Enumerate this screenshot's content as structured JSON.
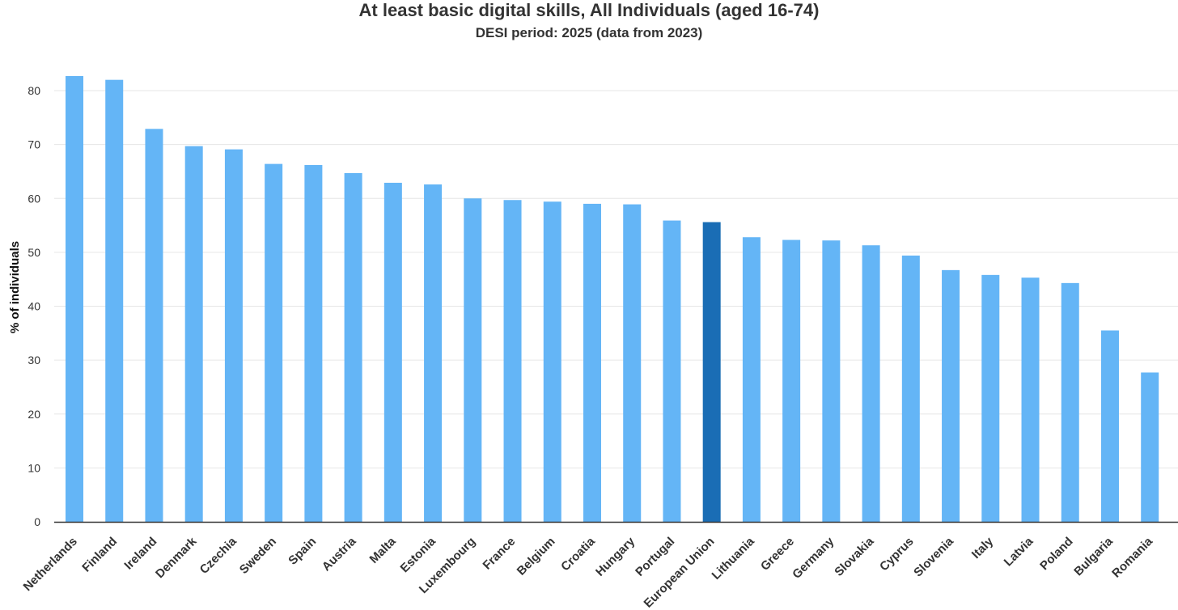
{
  "chart_data": {
    "type": "bar",
    "title": "At least basic digital skills, All Individuals (aged 16-74)",
    "subtitle": "DESI period: 2025 (data from 2023)",
    "xlabel": "",
    "ylabel": "% of individuals",
    "ylim": [
      0,
      85
    ],
    "yticks": [
      0,
      10,
      20,
      30,
      40,
      50,
      60,
      70,
      80
    ],
    "grid": true,
    "categories": [
      "Netherlands",
      "Finland",
      "Ireland",
      "Denmark",
      "Czechia",
      "Sweden",
      "Spain",
      "Austria",
      "Malta",
      "Estonia",
      "Luxembourg",
      "France",
      "Belgium",
      "Croatia",
      "Hungary",
      "Portugal",
      "European Union",
      "Lithuania",
      "Greece",
      "Germany",
      "Slovakia",
      "Cyprus",
      "Slovenia",
      "Italy",
      "Latvia",
      "Poland",
      "Bulgaria",
      "Romania"
    ],
    "values": [
      82.7,
      82.0,
      72.9,
      69.7,
      69.1,
      66.4,
      66.2,
      64.7,
      62.9,
      62.6,
      60.0,
      59.7,
      59.4,
      59.0,
      58.9,
      55.9,
      55.6,
      52.8,
      52.3,
      52.2,
      51.3,
      49.4,
      46.7,
      45.8,
      45.3,
      44.3,
      35.5,
      27.7
    ],
    "highlight": "European Union",
    "colors": {
      "bar": "#64b5f6",
      "highlight": "#1a6db5",
      "grid": "#e6e6e6",
      "axis": "#333333"
    }
  }
}
